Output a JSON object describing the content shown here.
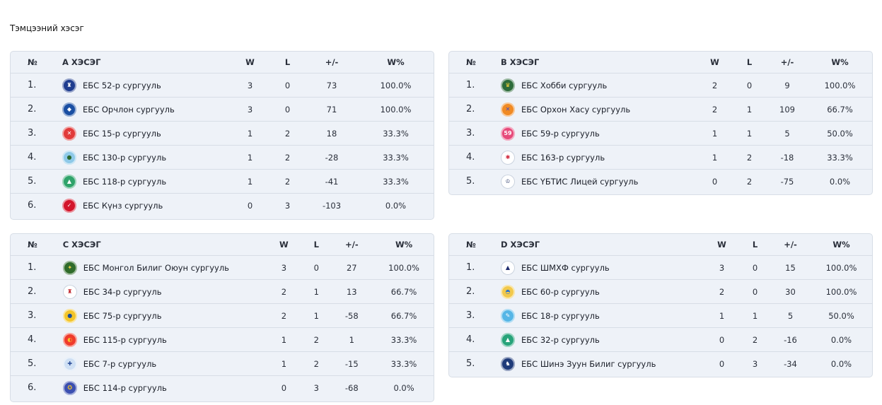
{
  "page_title": "Тэмцээний хэсэг",
  "headers": {
    "rank": "№",
    "w": "W",
    "l": "L",
    "diff": "+/-",
    "pct": "W%"
  },
  "groups": [
    {
      "title": "А ХЭСЭГ",
      "rows": [
        {
          "rank": "1.",
          "team": "ЕБС 52-р сургууль",
          "w": "3",
          "l": "0",
          "diff": "73",
          "pct": "100.0%",
          "logo": {
            "icon": "school-52-logo",
            "bg": "#1f3d8f",
            "fg": "#ffffff",
            "glyph": "♜"
          }
        },
        {
          "rank": "2.",
          "team": "ЕБС Орчлон сургууль",
          "w": "3",
          "l": "0",
          "diff": "71",
          "pct": "100.0%",
          "logo": {
            "icon": "orchlon-logo",
            "bg": "#1a4fa3",
            "fg": "#ffffff",
            "glyph": "◆"
          }
        },
        {
          "rank": "3.",
          "team": "ЕБС 15-р сургууль",
          "w": "1",
          "l": "2",
          "diff": "18",
          "pct": "33.3%",
          "logo": {
            "icon": "school-15-logo",
            "bg": "#e13a3a",
            "fg": "#ffffff",
            "glyph": "✕"
          }
        },
        {
          "rank": "4.",
          "team": "ЕБС 130-р сургууль",
          "w": "1",
          "l": "2",
          "diff": "-28",
          "pct": "33.3%",
          "logo": {
            "icon": "school-130-logo",
            "bg": "#8ec9e8",
            "fg": "#2b6a2f",
            "glyph": "●"
          }
        },
        {
          "rank": "5.",
          "team": "ЕБС 118-р сургууль",
          "w": "1",
          "l": "2",
          "diff": "-41",
          "pct": "33.3%",
          "logo": {
            "icon": "school-118-logo",
            "bg": "#2fa36b",
            "fg": "#ffffff",
            "glyph": "▲"
          }
        },
        {
          "rank": "6.",
          "team": "ЕБС Күнз сургууль",
          "w": "0",
          "l": "3",
          "diff": "-103",
          "pct": "0.0%",
          "logo": {
            "icon": "kunz-logo",
            "bg": "#d3152b",
            "fg": "#ffffff",
            "glyph": "✓"
          }
        }
      ]
    },
    {
      "title": "В ХЭСЭГ",
      "rows": [
        {
          "rank": "1.",
          "team": "ЕБС Хобби сургууль",
          "w": "2",
          "l": "0",
          "diff": "9",
          "pct": "100.0%",
          "logo": {
            "icon": "hobby-logo",
            "bg": "#2d6b3a",
            "fg": "#f6d03b",
            "glyph": "♛"
          }
        },
        {
          "rank": "2.",
          "team": "ЕБС Орхон Хасу сургууль",
          "w": "2",
          "l": "1",
          "diff": "109",
          "pct": "66.7%",
          "logo": {
            "icon": "orkhon-hasu-logo",
            "bg": "#f08a24",
            "fg": "#3a4bd0",
            "glyph": "✕"
          }
        },
        {
          "rank": "3.",
          "team": "ЕБС 59-р сургууль",
          "w": "1",
          "l": "1",
          "diff": "5",
          "pct": "50.0%",
          "logo": {
            "icon": "school-59-logo",
            "bg": "#e64a7a",
            "fg": "#ffffff",
            "glyph": "59"
          }
        },
        {
          "rank": "4.",
          "team": "ЕБС 163-р сургууль",
          "w": "1",
          "l": "2",
          "diff": "-18",
          "pct": "33.3%",
          "logo": {
            "icon": "school-163-logo",
            "bg": "#ffffff",
            "fg": "#d0263b",
            "glyph": "✱"
          }
        },
        {
          "rank": "5.",
          "team": "ЕБС ҮБТИС Лицей сургууль",
          "w": "0",
          "l": "2",
          "diff": "-75",
          "pct": "0.0%",
          "logo": {
            "icon": "ubtis-lyceum-logo",
            "bg": "#ffffff",
            "fg": "#2a3a6a",
            "glyph": "♔"
          }
        }
      ]
    },
    {
      "title": "С ХЭСЭГ",
      "rows": [
        {
          "rank": "1.",
          "team": "ЕБС Монгол Билиг Оюун сургууль",
          "w": "3",
          "l": "0",
          "diff": "27",
          "pct": "100.0%",
          "logo": {
            "icon": "mongol-bilig-logo",
            "bg": "#2f6b2a",
            "fg": "#f2d24a",
            "glyph": "✦"
          }
        },
        {
          "rank": "2.",
          "team": "ЕБС 34-р сургууль",
          "w": "2",
          "l": "1",
          "diff": "13",
          "pct": "66.7%",
          "logo": {
            "icon": "school-34-logo",
            "bg": "#ffffff",
            "fg": "#c0272d",
            "glyph": "♜"
          }
        },
        {
          "rank": "3.",
          "team": "ЕБС 75-р сургууль",
          "w": "2",
          "l": "1",
          "diff": "-58",
          "pct": "66.7%",
          "logo": {
            "icon": "school-75-logo",
            "bg": "#f3c52a",
            "fg": "#1d4f9a",
            "glyph": "●"
          }
        },
        {
          "rank": "4.",
          "team": "ЕБС 115-р сургууль",
          "w": "1",
          "l": "2",
          "diff": "1",
          "pct": "33.3%",
          "logo": {
            "icon": "school-115-logo",
            "bg": "#ef3b2c",
            "fg": "#f7c52b",
            "glyph": "◐"
          }
        },
        {
          "rank": "5.",
          "team": "ЕБС 7-р сургууль",
          "w": "1",
          "l": "2",
          "diff": "-15",
          "pct": "33.3%",
          "logo": {
            "icon": "school-7-logo",
            "bg": "#cfe0f4",
            "fg": "#2c4f9a",
            "glyph": "✚"
          }
        },
        {
          "rank": "6.",
          "team": "ЕБС 114-р сургууль",
          "w": "0",
          "l": "3",
          "diff": "-68",
          "pct": "0.0%",
          "logo": {
            "icon": "school-114-logo",
            "bg": "#3b4fb0",
            "fg": "#f3c52a",
            "glyph": "✪"
          }
        }
      ]
    },
    {
      "title": "D ХЭСЭГ",
      "rows": [
        {
          "rank": "1.",
          "team": "ЕБС ШМХФ сургууль",
          "w": "3",
          "l": "0",
          "diff": "15",
          "pct": "100.0%",
          "logo": {
            "icon": "shmkhf-logo",
            "bg": "#ffffff",
            "fg": "#1f2b6e",
            "glyph": "▲"
          }
        },
        {
          "rank": "2.",
          "team": "ЕБС 60-р сургууль",
          "w": "2",
          "l": "0",
          "diff": "30",
          "pct": "100.0%",
          "logo": {
            "icon": "school-60-logo",
            "bg": "#f2c94c",
            "fg": "#2f76c9",
            "glyph": "◓"
          }
        },
        {
          "rank": "3.",
          "team": "ЕБС 18-р сургууль",
          "w": "1",
          "l": "1",
          "diff": "5",
          "pct": "50.0%",
          "logo": {
            "icon": "school-18-logo",
            "bg": "#56b6e6",
            "fg": "#ffffff",
            "glyph": "✎"
          }
        },
        {
          "rank": "4.",
          "team": "ЕБС 32-р сургууль",
          "w": "0",
          "l": "2",
          "diff": "-16",
          "pct": "0.0%",
          "logo": {
            "icon": "school-32-logo",
            "bg": "#27a37a",
            "fg": "#ffffff",
            "glyph": "▲"
          }
        },
        {
          "rank": "5.",
          "team": "ЕБС Шинэ Зуун Билиг сургууль",
          "w": "0",
          "l": "3",
          "diff": "-34",
          "pct": "0.0%",
          "logo": {
            "icon": "shine-zuun-bilig-logo",
            "bg": "#1f3b7a",
            "fg": "#ffffff",
            "glyph": "♞"
          }
        }
      ]
    }
  ]
}
